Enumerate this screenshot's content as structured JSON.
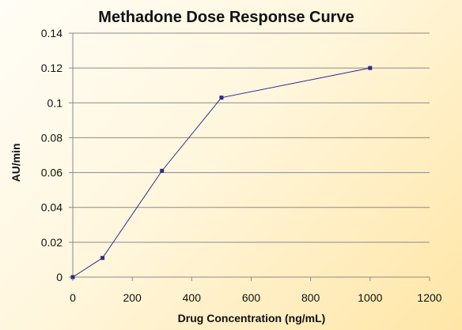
{
  "chart_data": {
    "type": "line",
    "title": "Methadone Dose Response Curve",
    "xlabel": "Drug Concentration (ng/mL)",
    "ylabel": "AU/min",
    "xlim": [
      0,
      1200
    ],
    "ylim": [
      0,
      0.14
    ],
    "x_ticks": [
      0,
      200,
      400,
      600,
      800,
      1000,
      1200
    ],
    "y_ticks": [
      0,
      0.02,
      0.04,
      0.06,
      0.08,
      0.1,
      0.12,
      0.14
    ],
    "x_tick_labels": [
      "0",
      "200",
      "400",
      "600",
      "800",
      "1000",
      "1200"
    ],
    "y_tick_labels": [
      "0",
      "0.02",
      "0.04",
      "0.06",
      "0.08",
      "0.1",
      "0.12",
      "0.14"
    ],
    "grid": "horizontal",
    "legend": "none",
    "series": [
      {
        "x": [
          0,
          100,
          300,
          500,
          1000
        ],
        "y": [
          0,
          0.011,
          0.061,
          0.103,
          0.12
        ],
        "color": "#2b2b8c"
      }
    ]
  }
}
